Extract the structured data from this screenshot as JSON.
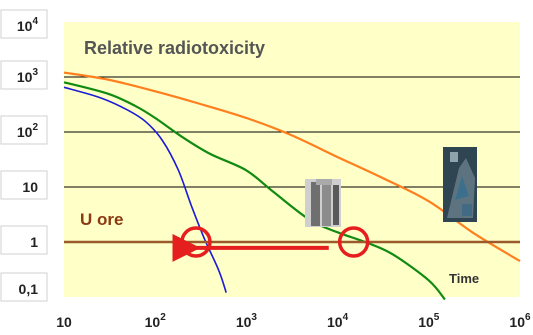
{
  "chart_data": {
    "type": "line",
    "title": "Relative radiotoxicity",
    "xlabel": "Time",
    "ylabel": "",
    "xscale": "log",
    "yscale": "log",
    "xlim": [
      10,
      1000000
    ],
    "ylim": [
      0.1,
      10000
    ],
    "x_ticks": [
      {
        "value": 10,
        "base": "10",
        "exp": ""
      },
      {
        "value": 100,
        "base": "10",
        "exp": "2"
      },
      {
        "value": 1000,
        "base": "10",
        "exp": "3"
      },
      {
        "value": 10000,
        "base": "10",
        "exp": "4"
      },
      {
        "value": 100000,
        "base": "10",
        "exp": "5"
      },
      {
        "value": 1000000,
        "base": "10",
        "exp": "6"
      }
    ],
    "y_ticks": [
      {
        "value": 10000,
        "base": "10",
        "exp": "4"
      },
      {
        "value": 1000,
        "base": "10",
        "exp": "3"
      },
      {
        "value": 100,
        "base": "10",
        "exp": "2"
      },
      {
        "value": 10,
        "base": "10",
        "exp": ""
      },
      {
        "value": 1,
        "base": "1",
        "exp": ""
      },
      {
        "value": 0.1,
        "base": "0,1",
        "exp": ""
      }
    ],
    "grid": "horizontal",
    "background": "#ffffc8",
    "series": [
      {
        "color": "#ff7f1e",
        "x": [
          10,
          30,
          100,
          300,
          1000,
          3000,
          10000,
          30000,
          100000,
          300000,
          1000000
        ],
        "y": [
          1200,
          900,
          550,
          330,
          180,
          90,
          35,
          15,
          5.5,
          1.5,
          0.45
        ]
      },
      {
        "color": "#118a11",
        "x": [
          10,
          30,
          60,
          100,
          200,
          400,
          1000,
          2000,
          5000,
          10000,
          20000,
          40000,
          100000,
          150000
        ],
        "y": [
          800,
          500,
          300,
          180,
          80,
          40,
          20,
          8,
          2.5,
          1.5,
          1,
          0.6,
          0.2,
          0.09
        ]
      },
      {
        "color": "#1b1bd8",
        "x": [
          10,
          25,
          50,
          80,
          120,
          180,
          250,
          350,
          500,
          600
        ],
        "y": [
          650,
          420,
          250,
          150,
          70,
          20,
          4.5,
          1.1,
          0.3,
          0.12
        ]
      }
    ],
    "reference_line": {
      "label": "U ore",
      "y": 1,
      "color": "#9a5a2a"
    },
    "markers": [
      {
        "x": 280,
        "y": 1,
        "color": "#e51e1e"
      },
      {
        "x": 15000,
        "y": 1,
        "color": "#e51e1e"
      }
    ],
    "arrow": {
      "from": [
        8000,
        0.78
      ],
      "to": [
        220,
        0.78
      ],
      "color": "#e51e1e"
    }
  }
}
